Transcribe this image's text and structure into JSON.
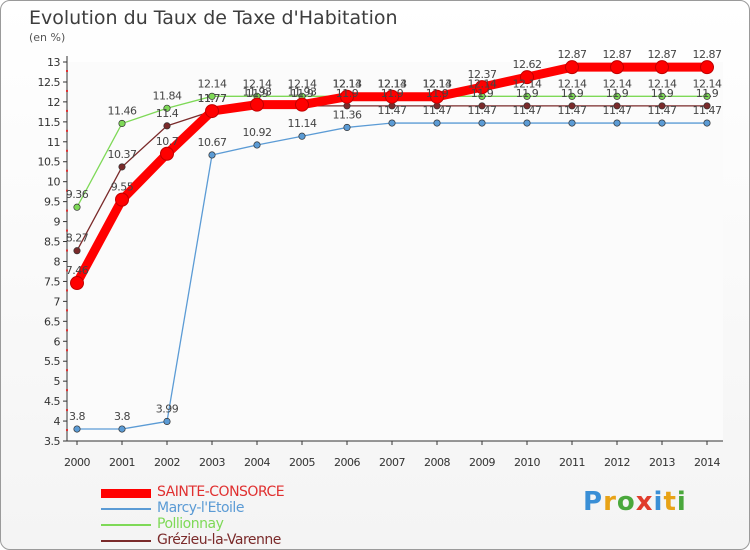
{
  "title": "Evolution du Taux de Taxe d'Habitation",
  "subtitle": "(en %)",
  "logo": {
    "letters": [
      "P",
      "r",
      "o",
      "x",
      "i",
      "t",
      "i"
    ],
    "colors": [
      "#3a8fd6",
      "#e8a317",
      "#4aa83c",
      "#e03c2c",
      "#3a8fd6",
      "#e8a317",
      "#4aa83c"
    ]
  },
  "chart_data": {
    "type": "line",
    "x": [
      "2000",
      "2001",
      "2002",
      "2003",
      "2004",
      "2005",
      "2006",
      "2007",
      "2008",
      "2009",
      "2010",
      "2011",
      "2012",
      "2013",
      "2014"
    ],
    "ylim": [
      3.5,
      13
    ],
    "yticks": [
      "3.5",
      "4",
      "4.5",
      "5",
      "5.5",
      "6",
      "6.5",
      "7",
      "7.5",
      "8",
      "8.5",
      "9",
      "9.5",
      "10",
      "10.5",
      "11",
      "11.5",
      "12",
      "12.5",
      "13"
    ],
    "grid": false,
    "legend_position": "bottom-left",
    "series": [
      {
        "name": "SAINTE-CONSORCE",
        "color": "#ff0000",
        "values": [
          7.46,
          9.55,
          10.7,
          11.77,
          11.93,
          11.93,
          12.13,
          12.13,
          12.13,
          12.37,
          12.62,
          12.87,
          12.87,
          12.87,
          12.87
        ],
        "labels": [
          "7.46",
          "9.55",
          "10.7",
          "11.77",
          "11.93",
          "11.93",
          "12.13",
          "12.13",
          "12.13",
          "12.37",
          "12.62",
          "12.87",
          "12.87",
          "12.87",
          "12.87"
        ]
      },
      {
        "name": "Marcy-l'Etoile",
        "color": "#5b9bd5",
        "values": [
          3.8,
          3.8,
          3.99,
          10.67,
          10.92,
          11.14,
          11.36,
          11.47,
          11.47,
          11.47,
          11.47,
          11.47,
          11.47,
          11.47,
          11.47
        ],
        "labels": [
          "3.8",
          "3.8",
          "3.99",
          "10.67",
          "10.92",
          "11.14",
          "11.36",
          "11.47",
          "11.47",
          "11.47",
          "11.47",
          "11.47",
          "11.47",
          "11.47",
          "11.47"
        ]
      },
      {
        "name": "Pollionnay",
        "color": "#7ed957",
        "values": [
          9.36,
          11.46,
          11.84,
          12.14,
          12.14,
          12.14,
          12.14,
          12.14,
          12.14,
          12.14,
          12.14,
          12.14,
          12.14,
          12.14,
          12.14
        ],
        "labels": [
          "9.36",
          "11.46",
          "11.84",
          "12.14",
          "12.14",
          "12.14",
          "12.14",
          "12.14",
          "12.14",
          "12.14",
          "12.14",
          "12.14",
          "12.14",
          "12.14",
          "12.14"
        ]
      },
      {
        "name": "Grézieu-la-Varenne",
        "color": "#7a2a2a",
        "values": [
          8.27,
          10.37,
          11.4,
          11.77,
          11.9,
          11.9,
          11.9,
          11.9,
          11.9,
          11.9,
          11.9,
          11.9,
          11.9,
          11.9,
          11.9
        ],
        "labels": [
          "8.27",
          "10.37",
          "11.4",
          "11.77",
          "11.9",
          "11.9",
          "11.9",
          "11.9",
          "11.9",
          "11.9",
          "11.9",
          "11.9",
          "11.9",
          "11.9",
          "11.9"
        ]
      }
    ]
  }
}
